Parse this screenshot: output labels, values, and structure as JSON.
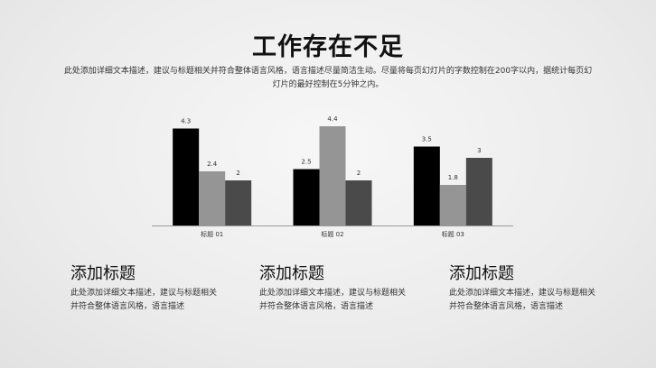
{
  "slide": {
    "title": "工作存在不足",
    "subtitle": "此处添加详细文本描述，建议与标题相关并符合整体语言风格，语言描述尽量简洁生动。尽量将每页幻灯片的字数控制在200字以内，据统计每页幻灯片的最好控制在5分钟之内。"
  },
  "chart_data": {
    "type": "bar",
    "categories": [
      "标题 01",
      "标题 02",
      "标题 03"
    ],
    "series": [
      {
        "values": [
          4.3,
          2.5,
          3.5
        ],
        "color": "#000000"
      },
      {
        "values": [
          2.4,
          4.4,
          1.8
        ],
        "color": "#959595"
      },
      {
        "values": [
          2,
          2,
          3
        ],
        "color": "#4a4a4a"
      }
    ],
    "ylim": [
      0,
      5
    ],
    "grid": false,
    "legend": "none"
  },
  "columns": [
    {
      "title": "添加标题",
      "body": "此处添加详细文本描述，建议与标题相关并符合整体语言风格，语言描述"
    },
    {
      "title": "添加标题",
      "body": "此处添加详细文本描述，建议与标题相关并符合整体语言风格，语言描述"
    },
    {
      "title": "添加标题",
      "body": "此处添加详细文本描述，建议与标题相关并符合整体语言风格，语言描述"
    }
  ]
}
